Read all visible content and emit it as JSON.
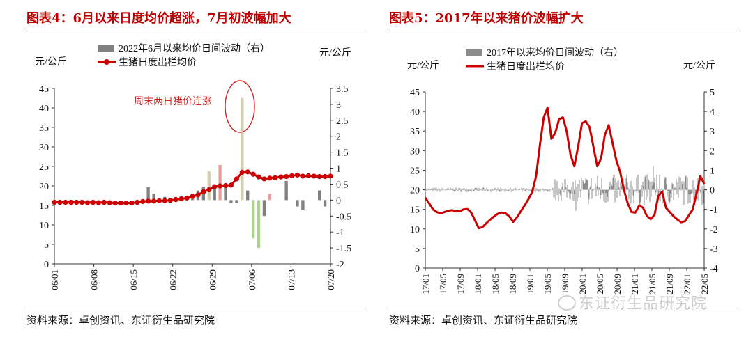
{
  "chart_data": [
    {
      "type": "bar+line",
      "title": "图表4：6月以来日度均价超涨，7月初波幅加大",
      "legend": {
        "bar_label": "2022年6月以来均价日间波动（右）",
        "line_label": "生猪日度出栏均价",
        "placement": "top-center"
      },
      "ylabel_left": "元/公斤",
      "ylabel_right": "元/公斤",
      "ylim_left": [
        0,
        45
      ],
      "yticks_left": [
        0,
        5,
        10,
        15,
        20,
        25,
        30,
        35,
        40,
        45
      ],
      "ylim_right": [
        -2,
        3.5
      ],
      "yticks_right": [
        -2,
        -1.5,
        -1,
        -0.5,
        0,
        0.5,
        1,
        1.5,
        2,
        2.5,
        3,
        3.5
      ],
      "xticks": [
        "06/01",
        "06/08",
        "06/15",
        "06/22",
        "06/29",
        "07/06",
        "07/13",
        "07/20"
      ],
      "annotation": "周末两日猪价连涨",
      "colors": {
        "line": "#cc0000",
        "bar": "#808080",
        "bar_highlight_up": "#d9cdb0",
        "bar_highlight_red": "#e8a0a0",
        "bar_highlight_down": "#a9d18e"
      },
      "line": [
        15.8,
        15.8,
        15.8,
        15.8,
        15.8,
        15.8,
        15.7,
        15.8,
        15.7,
        15.8,
        15.7,
        15.6,
        15.6,
        15.6,
        15.6,
        15.8,
        16.0,
        16.1,
        16.1,
        16.2,
        16.2,
        16.3,
        16.5,
        16.7,
        16.9,
        17.3,
        17.7,
        18.5,
        19.0,
        19.8,
        20.0,
        20.1,
        20.2,
        21.8,
        23.5,
        23.6,
        23.0,
        22.3,
        21.8,
        22.0,
        22.1,
        22.3,
        22.4,
        22.6,
        22.8,
        22.5,
        22.6,
        22.5,
        22.4,
        22.4,
        22.5
      ],
      "bars": [
        0,
        0,
        0,
        0,
        0,
        0,
        0,
        0,
        0,
        0,
        0,
        0,
        0,
        0,
        0,
        0,
        0,
        0.4,
        0.2,
        0,
        0.1,
        0,
        0.1,
        0,
        0,
        0.2,
        0.3,
        0.4,
        0.9,
        0.4,
        1.1,
        0.4,
        -0.1,
        -0.1,
        3.2,
        0.3,
        -1.2,
        -1.5,
        -0.5,
        0.2,
        0,
        0,
        0.6,
        0,
        -0.2,
        -0.3,
        0,
        0,
        0.3,
        -0.2,
        0
      ],
      "bar_highlights": {
        "28": "up",
        "30": "red",
        "34": "up",
        "36": "down",
        "37": "down",
        "39": "red"
      }
    },
    {
      "type": "bar+line",
      "title": "图表5：2017年以来猪价波幅扩大",
      "legend": {
        "bar_label": "2017年以来均价日间波动（右）",
        "line_label": "生猪日度出栏均价",
        "placement": "top-center"
      },
      "ylabel_left": "元/公斤",
      "ylabel_right": "元/公斤",
      "ylim_left": [
        0,
        45
      ],
      "yticks_left": [
        0,
        5,
        10,
        15,
        20,
        25,
        30,
        35,
        40,
        45
      ],
      "ylim_right": [
        -4,
        5
      ],
      "yticks_right": [
        -4,
        -3,
        -2,
        -1,
        0,
        1,
        2,
        3,
        4,
        5
      ],
      "xticks": [
        "17/01",
        "17/05",
        "17/09",
        "18/01",
        "18/05",
        "18/09",
        "19/01",
        "19/05",
        "19/09",
        "20/01",
        "20/05",
        "20/09",
        "21/01",
        "21/05",
        "21/09",
        "22/01",
        "22/05"
      ],
      "colors": {
        "line": "#cc0000",
        "bar": "#8c8c8c"
      },
      "line": [
        18.0,
        16.5,
        15.0,
        14.3,
        14.0,
        14.3,
        14.6,
        14.8,
        14.5,
        14.5,
        15.0,
        15.1,
        14.2,
        12.2,
        10.2,
        10.5,
        11.5,
        12.4,
        13.2,
        13.9,
        14.2,
        14.0,
        13.2,
        11.8,
        13.0,
        14.5,
        16.0,
        17.6,
        19.5,
        23.5,
        31.5,
        38.5,
        41.0,
        33.0,
        34.5,
        38.0,
        38.5,
        35.0,
        29.0,
        26.0,
        31.0,
        37.0,
        37.5,
        36.0,
        31.0,
        26.0,
        28.0,
        34.0,
        36.5,
        32.0,
        27.5,
        24.5,
        20.0,
        16.5,
        14.3,
        14.2,
        16.0,
        15.4,
        13.3,
        12.5,
        13.6,
        18.5,
        19.5,
        15.4,
        14.3,
        13.2,
        12.4,
        11.7,
        12.0,
        13.5,
        15.0,
        19.0,
        23.5,
        21.5
      ]
    }
  ],
  "sources": [
    "资料来源：卓创资讯、东证衍生品研究院",
    "资料来源：卓创资讯、东证衍生品研究院"
  ],
  "watermark": "东证衍生品研究院"
}
